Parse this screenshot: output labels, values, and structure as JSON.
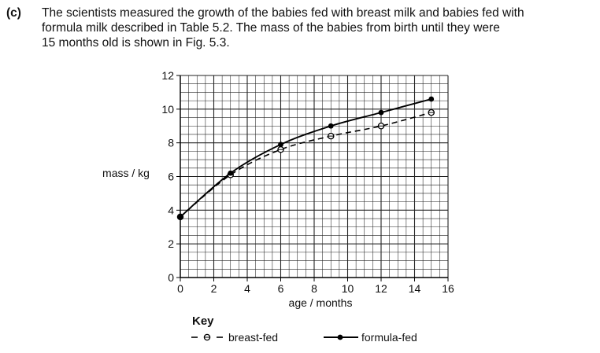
{
  "question": {
    "label": "(c)",
    "lines": [
      "The scientists measured the growth of the babies fed with breast milk and babies fed with",
      "formula milk described in Table 5.2. The mass of the babies from birth until they were",
      "15 months old is shown in Fig. 5.3."
    ]
  },
  "chart_data": {
    "type": "line",
    "xlabel": "age / months",
    "ylabel": "mass / kg",
    "xlim": [
      0,
      16
    ],
    "ylim": [
      0,
      12
    ],
    "x_ticks": [
      0,
      2,
      4,
      6,
      8,
      10,
      12,
      14,
      16
    ],
    "y_ticks": [
      0,
      2,
      4,
      6,
      8,
      10,
      12
    ],
    "grid": true,
    "legend_title": "Key",
    "legend_placement": "bottom",
    "series": [
      {
        "name": "breast-fed",
        "style": "dashed",
        "marker": "open-circle",
        "x": [
          0,
          3,
          6,
          9,
          12,
          15
        ],
        "y": [
          3.6,
          6.1,
          7.6,
          8.4,
          9.0,
          9.8
        ]
      },
      {
        "name": "formula-fed",
        "style": "solid",
        "marker": "filled-circle",
        "x": [
          0,
          3,
          6,
          9,
          12,
          15
        ],
        "y": [
          3.6,
          6.2,
          7.9,
          9.0,
          9.8,
          10.6
        ]
      }
    ]
  }
}
